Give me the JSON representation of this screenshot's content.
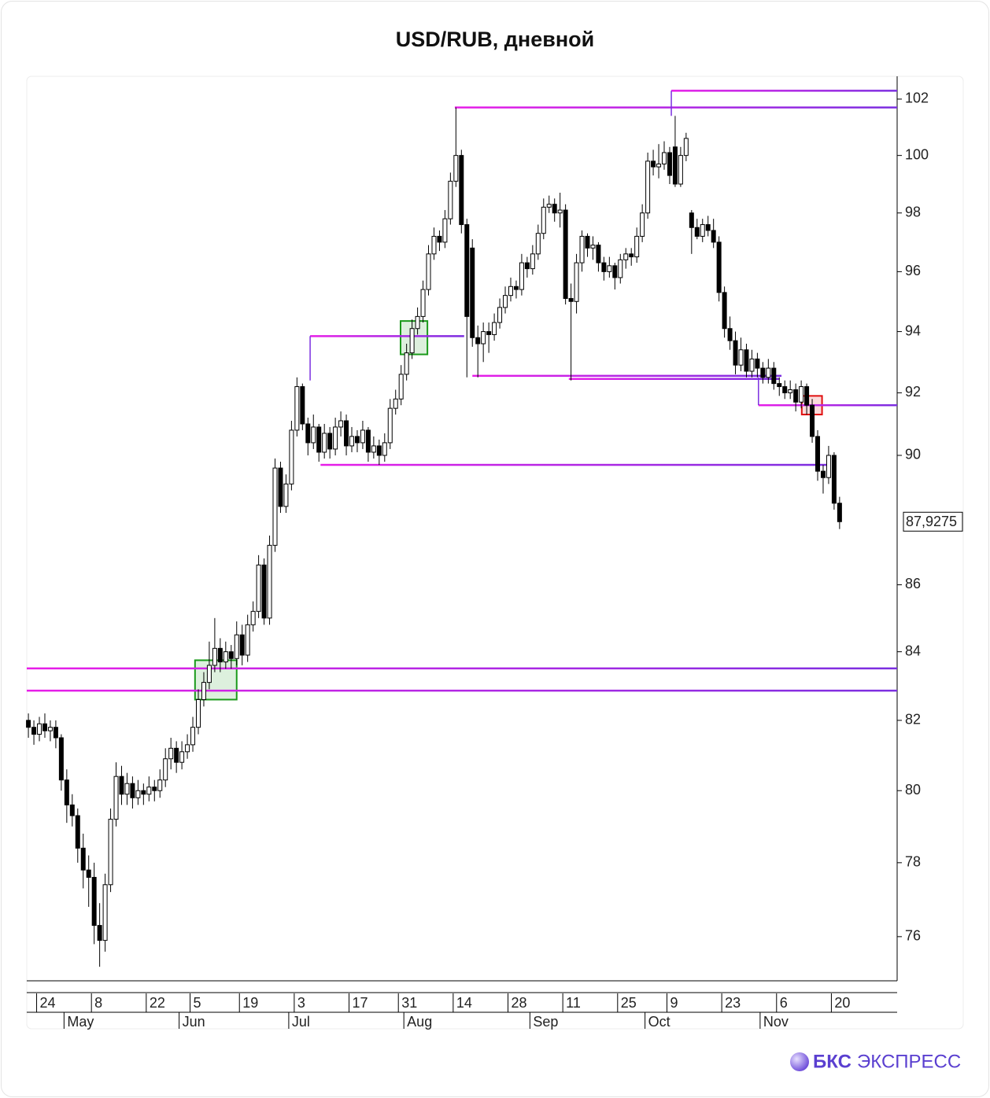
{
  "chart_data": {
    "type": "candlestick",
    "title": "USD/RUB, дневной",
    "ylog": true,
    "ylim": [
      74.83,
      102.82
    ],
    "yticks": [
      76,
      78,
      80,
      82,
      84,
      86,
      90,
      92,
      94,
      96,
      98,
      100,
      102
    ],
    "xlim": [
      -0.3,
      158.5
    ],
    "xticks": [
      {
        "value": 2,
        "label": "24"
      },
      {
        "value": 12,
        "label": "8"
      },
      {
        "value": 22,
        "label": "22"
      },
      {
        "value": 30,
        "label": "5"
      },
      {
        "value": 39,
        "label": "19"
      },
      {
        "value": 49,
        "label": "3"
      },
      {
        "value": 59,
        "label": "17"
      },
      {
        "value": 68,
        "label": "31"
      },
      {
        "value": 78,
        "label": "14"
      },
      {
        "value": 88,
        "label": "28"
      },
      {
        "value": 98,
        "label": "11"
      },
      {
        "value": 108,
        "label": "25"
      },
      {
        "value": 117,
        "label": "9"
      },
      {
        "value": 127,
        "label": "23"
      },
      {
        "value": 137,
        "label": "6"
      },
      {
        "value": 147,
        "label": "20"
      }
    ],
    "month_ticks": [
      {
        "value": 7,
        "label": "May"
      },
      {
        "value": 28,
        "label": "Jun"
      },
      {
        "value": 48,
        "label": "Jul"
      },
      {
        "value": 69,
        "label": "Aug"
      },
      {
        "value": 92,
        "label": "Sep"
      },
      {
        "value": 113,
        "label": "Oct"
      },
      {
        "value": 134,
        "label": "Nov"
      }
    ],
    "up_color": "#ffffff",
    "down_color": "#000000",
    "ohlc": [
      [
        82.0,
        82.2,
        81.5,
        81.8
      ],
      [
        81.8,
        82.0,
        81.3,
        81.6
      ],
      [
        81.6,
        82.1,
        81.4,
        81.9
      ],
      [
        81.9,
        82.2,
        81.5,
        81.7
      ],
      [
        81.7,
        82.0,
        81.4,
        81.8
      ],
      [
        81.8,
        82.0,
        81.2,
        81.5
      ],
      [
        81.5,
        81.6,
        80.0,
        80.3
      ],
      [
        80.3,
        80.6,
        79.1,
        79.6
      ],
      [
        79.6,
        79.9,
        79.0,
        79.3
      ],
      [
        79.3,
        79.5,
        78.0,
        78.4
      ],
      [
        78.4,
        78.8,
        77.3,
        77.8
      ],
      [
        77.8,
        78.2,
        76.8,
        77.6
      ],
      [
        77.6,
        78.0,
        75.8,
        76.3
      ],
      [
        76.3,
        76.9,
        75.2,
        75.9
      ],
      [
        75.9,
        77.7,
        75.6,
        77.4
      ],
      [
        77.4,
        79.5,
        77.2,
        79.2
      ],
      [
        79.2,
        80.8,
        79.0,
        80.4
      ],
      [
        80.4,
        80.7,
        79.6,
        79.9
      ],
      [
        79.9,
        80.5,
        79.6,
        80.2
      ],
      [
        80.2,
        80.4,
        79.5,
        79.8
      ],
      [
        79.8,
        80.3,
        79.6,
        80.0
      ],
      [
        80.0,
        80.2,
        79.6,
        79.9
      ],
      [
        79.9,
        80.4,
        79.7,
        80.1
      ],
      [
        80.1,
        80.3,
        79.7,
        80.0
      ],
      [
        80.0,
        80.6,
        79.8,
        80.3
      ],
      [
        80.3,
        81.2,
        80.1,
        80.9
      ],
      [
        80.9,
        81.5,
        80.6,
        81.2
      ],
      [
        81.2,
        81.4,
        80.5,
        80.8
      ],
      [
        80.8,
        81.4,
        80.6,
        81.1
      ],
      [
        81.1,
        81.6,
        80.9,
        81.3
      ],
      [
        81.3,
        82.1,
        81.1,
        81.8
      ],
      [
        81.8,
        82.9,
        81.6,
        82.6
      ],
      [
        82.6,
        83.4,
        82.4,
        83.1
      ],
      [
        83.1,
        84.3,
        82.9,
        83.6
      ],
      [
        83.6,
        85.0,
        83.4,
        84.1
      ],
      [
        84.1,
        84.4,
        83.4,
        83.7
      ],
      [
        83.7,
        84.3,
        83.5,
        84.0
      ],
      [
        84.0,
        84.2,
        83.5,
        83.8
      ],
      [
        83.8,
        84.9,
        83.6,
        84.5
      ],
      [
        84.5,
        84.8,
        83.6,
        83.9
      ],
      [
        83.9,
        85.1,
        83.7,
        84.8
      ],
      [
        84.8,
        85.5,
        84.6,
        85.2
      ],
      [
        85.2,
        86.9,
        85.0,
        86.6
      ],
      [
        86.6,
        86.8,
        84.8,
        85.0
      ],
      [
        85.0,
        87.5,
        84.8,
        87.2
      ],
      [
        87.2,
        89.9,
        87.0,
        89.6
      ],
      [
        89.6,
        89.8,
        88.2,
        88.4
      ],
      [
        88.4,
        89.4,
        88.2,
        89.1
      ],
      [
        89.1,
        91.1,
        88.9,
        90.8
      ],
      [
        90.8,
        92.5,
        90.6,
        92.2
      ],
      [
        92.2,
        92.3,
        90.8,
        91.0
      ],
      [
        91.0,
        91.2,
        90.0,
        90.4
      ],
      [
        90.4,
        91.3,
        90.2,
        90.9
      ],
      [
        90.9,
        91.0,
        89.8,
        90.1
      ],
      [
        90.1,
        91.0,
        89.9,
        90.7
      ],
      [
        90.7,
        90.9,
        89.9,
        90.2
      ],
      [
        90.2,
        91.2,
        90.0,
        90.9
      ],
      [
        90.9,
        91.4,
        90.6,
        91.1
      ],
      [
        91.1,
        91.3,
        90.0,
        90.3
      ],
      [
        90.3,
        90.9,
        90.1,
        90.6
      ],
      [
        90.6,
        90.8,
        90.1,
        90.4
      ],
      [
        90.4,
        91.1,
        90.2,
        90.8
      ],
      [
        90.8,
        90.9,
        89.8,
        90.1
      ],
      [
        90.1,
        90.6,
        89.9,
        90.3
      ],
      [
        90.3,
        90.5,
        89.7,
        90.0
      ],
      [
        90.0,
        90.7,
        89.8,
        90.4
      ],
      [
        90.4,
        91.8,
        90.2,
        91.5
      ],
      [
        91.5,
        92.1,
        91.3,
        91.8
      ],
      [
        91.8,
        92.9,
        91.6,
        92.6
      ],
      [
        92.6,
        93.6,
        92.4,
        93.3
      ],
      [
        93.3,
        94.4,
        93.1,
        94.1
      ],
      [
        94.1,
        94.8,
        93.9,
        94.5
      ],
      [
        94.5,
        95.7,
        94.3,
        95.4
      ],
      [
        95.4,
        96.9,
        95.2,
        96.6
      ],
      [
        96.6,
        97.5,
        96.4,
        97.2
      ],
      [
        97.2,
        97.4,
        96.7,
        97.0
      ],
      [
        97.0,
        98.1,
        96.8,
        97.8
      ],
      [
        97.8,
        99.4,
        97.6,
        99.1
      ],
      [
        99.1,
        101.7,
        98.9,
        100.0
      ],
      [
        100.0,
        100.2,
        97.3,
        97.6
      ],
      [
        97.6,
        97.8,
        92.5,
        94.5
      ],
      [
        96.8,
        97.1,
        93.5,
        93.8
      ],
      [
        93.8,
        94.2,
        92.5,
        93.6
      ],
      [
        93.6,
        94.3,
        93.0,
        94.0
      ],
      [
        94.0,
        94.3,
        93.3,
        93.9
      ],
      [
        93.9,
        94.6,
        93.7,
        94.3
      ],
      [
        94.3,
        95.1,
        94.1,
        94.8
      ],
      [
        94.8,
        95.5,
        94.6,
        95.2
      ],
      [
        95.2,
        95.8,
        95.0,
        95.5
      ],
      [
        95.5,
        95.7,
        95.1,
        95.4
      ],
      [
        95.4,
        96.6,
        95.2,
        96.3
      ],
      [
        96.3,
        96.5,
        95.8,
        96.1
      ],
      [
        96.1,
        96.9,
        95.9,
        96.6
      ],
      [
        96.6,
        97.6,
        96.4,
        97.3
      ],
      [
        97.3,
        98.5,
        97.1,
        98.2
      ],
      [
        98.2,
        98.6,
        98.0,
        98.3
      ],
      [
        98.3,
        98.5,
        97.7,
        98.0
      ],
      [
        98.0,
        98.7,
        97.5,
        98.1
      ],
      [
        98.1,
        98.3,
        94.9,
        95.1
      ],
      [
        95.1,
        95.6,
        92.4,
        95.0
      ],
      [
        95.0,
        96.6,
        94.6,
        96.3
      ],
      [
        96.3,
        97.4,
        96.0,
        97.2
      ],
      [
        97.2,
        97.3,
        96.5,
        96.8
      ],
      [
        96.8,
        97.2,
        96.4,
        96.9
      ],
      [
        96.9,
        97.0,
        96.0,
        96.3
      ],
      [
        96.3,
        96.5,
        95.7,
        96.0
      ],
      [
        96.0,
        96.5,
        95.8,
        96.2
      ],
      [
        96.2,
        96.3,
        95.4,
        95.8
      ],
      [
        95.8,
        96.6,
        95.6,
        96.4
      ],
      [
        96.4,
        96.8,
        96.1,
        96.6
      ],
      [
        96.6,
        96.8,
        96.2,
        96.5
      ],
      [
        96.5,
        97.5,
        96.3,
        97.2
      ],
      [
        97.2,
        98.3,
        97.0,
        98.0
      ],
      [
        98.0,
        100.1,
        97.8,
        99.8
      ],
      [
        99.8,
        100.2,
        99.3,
        99.6
      ],
      [
        99.6,
        100.4,
        99.2,
        99.7
      ],
      [
        99.7,
        100.5,
        99.5,
        100.1
      ],
      [
        100.1,
        100.3,
        99.0,
        99.3
      ],
      [
        100.3,
        101.4,
        98.9,
        99.0
      ],
      [
        99.0,
        100.3,
        98.9,
        100.0
      ],
      [
        100.0,
        100.8,
        99.8,
        100.6
      ],
      [
        98.0,
        98.1,
        96.6,
        97.5
      ],
      [
        97.5,
        97.8,
        97.1,
        97.2
      ],
      [
        97.2,
        97.8,
        97.0,
        97.6
      ],
      [
        97.6,
        97.9,
        97.2,
        97.4
      ],
      [
        97.4,
        97.8,
        96.8,
        97.0
      ],
      [
        97.0,
        97.2,
        95.0,
        95.3
      ],
      [
        95.3,
        95.5,
        93.8,
        94.1
      ],
      [
        94.1,
        94.5,
        93.4,
        93.7
      ],
      [
        93.7,
        94.0,
        92.6,
        92.9
      ],
      [
        92.9,
        93.8,
        92.7,
        93.4
      ],
      [
        93.4,
        93.6,
        92.5,
        92.7
      ],
      [
        92.7,
        93.4,
        92.5,
        93.1
      ],
      [
        93.1,
        93.3,
        92.5,
        92.8
      ],
      [
        92.8,
        93.0,
        92.3,
        92.5
      ],
      [
        92.5,
        93.1,
        92.3,
        92.8
      ],
      [
        92.8,
        93.0,
        92.1,
        92.3
      ],
      [
        92.3,
        92.5,
        91.9,
        92.2
      ],
      [
        92.2,
        92.4,
        91.8,
        92.0
      ],
      [
        92.0,
        92.4,
        91.8,
        92.1
      ],
      [
        92.1,
        92.3,
        91.4,
        91.7
      ],
      [
        91.7,
        92.4,
        91.5,
        92.2
      ],
      [
        92.2,
        92.3,
        91.3,
        91.6
      ],
      [
        91.6,
        91.8,
        90.4,
        90.6
      ],
      [
        90.6,
        90.8,
        89.2,
        89.5
      ],
      [
        89.5,
        89.7,
        88.8,
        89.3
      ],
      [
        89.3,
        90.3,
        89.1,
        90.0
      ],
      [
        90.0,
        90.1,
        88.3,
        88.5
      ],
      [
        88.5,
        88.7,
        87.7,
        87.9275
      ]
    ],
    "last_price": {
      "value": 87.9275,
      "label": "87,9275"
    },
    "level_colors": [
      "#e81ee8",
      "#7b2fe0"
    ],
    "levels": [
      {
        "x": [
          77.8,
          158.5
        ],
        "y": 101.7
      },
      {
        "x": [
          117.3,
          158.5
        ],
        "y": 102.3,
        "stem": 101.4
      },
      {
        "x": [
          51.4,
          79.5
        ],
        "y": 93.85,
        "stem": 92.4
      },
      {
        "x": [
          81,
          137.4
        ],
        "y": 92.55
      },
      {
        "x": [
          98.6,
          137
        ],
        "y": 92.45
      },
      {
        "x": [
          133.2,
          158.5
        ],
        "y": 91.6,
        "stem": 92.5
      },
      {
        "x": [
          53.3,
          146.3
        ],
        "y": 89.7
      },
      {
        "x": [
          -0.3,
          158.5
        ],
        "y": 83.51
      },
      {
        "x": [
          -0.3,
          158.5
        ],
        "y": 82.86
      }
    ],
    "boxes": [
      {
        "x": [
          30.4,
          38.0
        ],
        "y": [
          82.6,
          83.75
        ],
        "color": "#1a9a1a"
      },
      {
        "x": [
          67.9,
          72.8
        ],
        "y": [
          93.25,
          94.35
        ],
        "color": "#1a9a1a"
      },
      {
        "x": [
          141.1,
          144.8
        ],
        "y": [
          91.3,
          91.9
        ],
        "color": "#e01010"
      }
    ]
  },
  "brand": [
    "БКС",
    "ЭКСПРЕСС"
  ]
}
